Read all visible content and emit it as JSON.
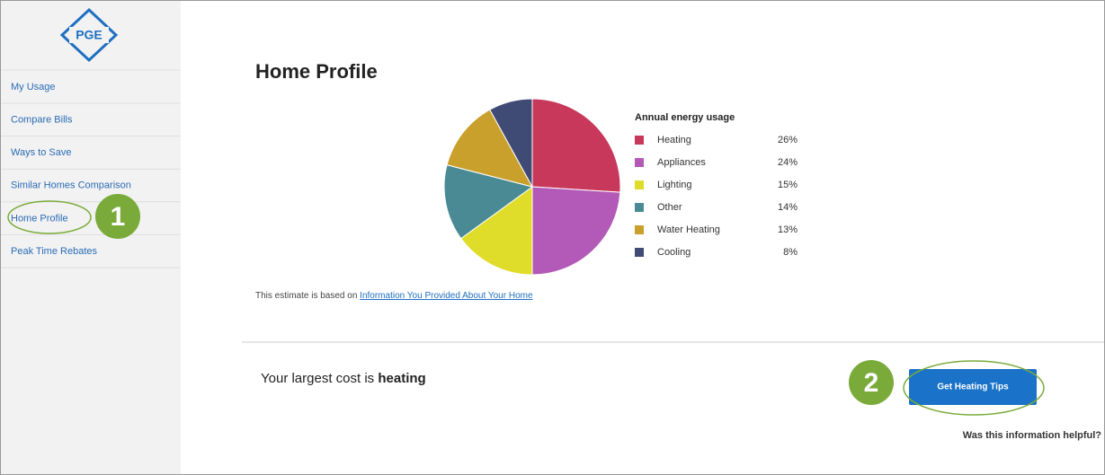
{
  "logo": "PGE",
  "nav": [
    "My Usage",
    "Compare Bills",
    "Ways to Save",
    "Similar Homes Comparison",
    "Home Profile",
    "Peak Time Rebates"
  ],
  "steps": [
    "1",
    "2"
  ],
  "page_title": "Home Profile",
  "chart_data": {
    "type": "pie",
    "legend_title": "Annual energy usage",
    "categories": [
      "Heating",
      "Appliances",
      "Lighting",
      "Other",
      "Water Heating",
      "Cooling"
    ],
    "values": [
      26,
      24,
      15,
      14,
      13,
      8
    ],
    "value_labels": [
      "26%",
      "24%",
      "15%",
      "14%",
      "13%",
      "8%"
    ],
    "colors": [
      "#c8385a",
      "#b35ab8",
      "#e0dc2a",
      "#4a8a94",
      "#c9a02c",
      "#3f4a75"
    ],
    "legend": "right"
  },
  "note": {
    "text": "This estimate is based on",
    "link": "Information You Provided About Your Home"
  },
  "cost": {
    "text": "Your largest cost is",
    "emphasis": "heating"
  },
  "button": "Get Heating Tips",
  "helpful": "Was this information helpful?"
}
